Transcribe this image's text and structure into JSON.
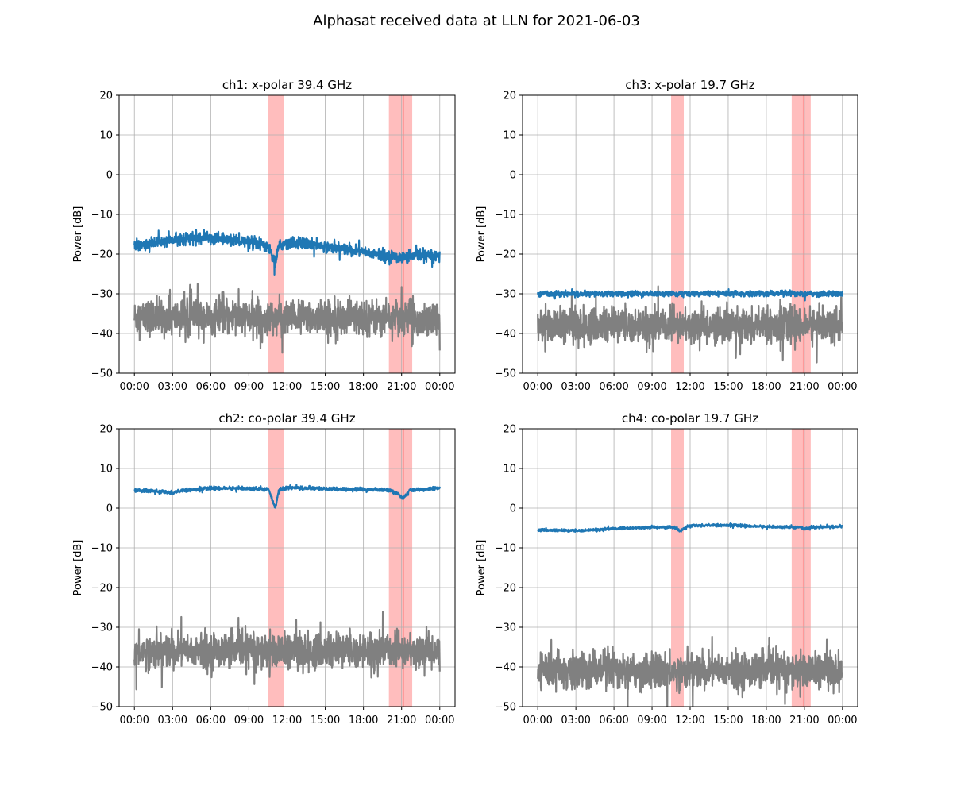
{
  "figure": {
    "title": "Alphasat received data at LLN for 2021-06-03"
  },
  "chart_data": [
    {
      "type": "line",
      "title": "ch1: x-polar 39.4 GHz",
      "xlabel": "",
      "ylabel": "Power [dB]",
      "xlim": [
        "2021-06-03 00:00",
        "2021-06-04 00:00"
      ],
      "ylim": [
        -50,
        20
      ],
      "x_ticks": [
        "00:00",
        "03:00",
        "06:00",
        "09:00",
        "12:00",
        "15:00",
        "18:00",
        "21:00",
        "00:00"
      ],
      "y_ticks": [
        -50,
        -40,
        -30,
        -20,
        -10,
        0,
        10,
        20
      ],
      "grid": true,
      "shaded_intervals": [
        [
          "10:30",
          "11:45"
        ],
        [
          "20:00",
          "21:50"
        ]
      ],
      "extra_vlines": [
        "21:10"
      ],
      "shade_color": "#ff9999",
      "series": [
        {
          "color": "#1f77b4",
          "noise_db": 1.3,
          "x": [
            "00:00",
            "02:00",
            "04:00",
            "06:00",
            "08:00",
            "09:30",
            "10:30",
            "10:55",
            "11:05",
            "11:20",
            "12:00",
            "14:00",
            "16:00",
            "18:00",
            "20:00",
            "21:00",
            "22:00",
            "24:00"
          ],
          "y": [
            -18,
            -17,
            -16,
            -16,
            -16.5,
            -17.5,
            -18,
            -21,
            -22,
            -18,
            -17,
            -17.5,
            -18.5,
            -19.5,
            -20.5,
            -21,
            -20.5,
            -20.5
          ]
        },
        {
          "color": "#808080",
          "noise_db": 4,
          "x": [
            "00:00",
            "24:00"
          ],
          "y": [
            -36,
            -36
          ]
        }
      ]
    },
    {
      "type": "line",
      "title": "ch3: x-polar 19.7 GHz",
      "xlabel": "",
      "ylabel": "Power [dB]",
      "xlim": [
        "2021-06-03 00:00",
        "2021-06-04 00:00"
      ],
      "ylim": [
        -50,
        20
      ],
      "x_ticks": [
        "00:00",
        "03:00",
        "06:00",
        "09:00",
        "12:00",
        "15:00",
        "18:00",
        "21:00",
        "00:00"
      ],
      "y_ticks": [
        -50,
        -40,
        -30,
        -20,
        -10,
        0,
        10,
        20
      ],
      "grid": true,
      "shaded_intervals": [
        [
          "10:30",
          "11:30"
        ],
        [
          "20:00",
          "21:30"
        ]
      ],
      "extra_vlines": [
        "20:55"
      ],
      "shade_color": "#ff9999",
      "series": [
        {
          "color": "#1f77b4",
          "noise_db": 0.6,
          "x": [
            "00:00",
            "24:00"
          ],
          "y": [
            -30,
            -30
          ]
        },
        {
          "color": "#808080",
          "noise_db": 4,
          "x": [
            "00:00",
            "24:00"
          ],
          "y": [
            -38,
            -38
          ]
        }
      ]
    },
    {
      "type": "line",
      "title": "ch2: co-polar 39.4 GHz",
      "xlabel": "",
      "ylabel": "Power [dB]",
      "xlim": [
        "2021-06-03 00:00",
        "2021-06-04 00:00"
      ],
      "ylim": [
        -50,
        20
      ],
      "x_ticks": [
        "00:00",
        "03:00",
        "06:00",
        "09:00",
        "12:00",
        "15:00",
        "18:00",
        "21:00",
        "00:00"
      ],
      "y_ticks": [
        -50,
        -40,
        -30,
        -20,
        -10,
        0,
        10,
        20
      ],
      "grid": true,
      "shaded_intervals": [
        [
          "10:30",
          "11:45"
        ],
        [
          "20:00",
          "21:50"
        ]
      ],
      "extra_vlines": [
        "21:10"
      ],
      "shade_color": "#ff9999",
      "series": [
        {
          "color": "#1f77b4",
          "noise_db": 0.4,
          "x": [
            "00:00",
            "02:00",
            "03:00",
            "04:00",
            "06:00",
            "08:00",
            "10:30",
            "10:55",
            "11:05",
            "11:20",
            "12:00",
            "14:00",
            "16:00",
            "18:00",
            "20:00",
            "20:45",
            "21:10",
            "21:40",
            "24:00"
          ],
          "y": [
            4.5,
            4.2,
            3.9,
            4.5,
            5,
            5,
            4.8,
            1.5,
            0,
            4.5,
            5.2,
            5,
            4.8,
            4.7,
            4.6,
            3.5,
            2.5,
            4.5,
            5
          ]
        },
        {
          "color": "#808080",
          "noise_db": 4,
          "x": [
            "00:00",
            "24:00"
          ],
          "y": [
            -36,
            -36
          ]
        }
      ]
    },
    {
      "type": "line",
      "title": "ch4: co-polar 19.7 GHz",
      "xlabel": "",
      "ylabel": "Power [dB]",
      "xlim": [
        "2021-06-03 00:00",
        "2021-06-04 00:00"
      ],
      "ylim": [
        -50,
        20
      ],
      "x_ticks": [
        "00:00",
        "03:00",
        "06:00",
        "09:00",
        "12:00",
        "15:00",
        "18:00",
        "21:00",
        "00:00"
      ],
      "y_ticks": [
        -50,
        -40,
        -30,
        -20,
        -10,
        0,
        10,
        20
      ],
      "grid": true,
      "shaded_intervals": [
        [
          "10:30",
          "11:30"
        ],
        [
          "20:00",
          "21:30"
        ]
      ],
      "extra_vlines": [
        "20:55"
      ],
      "shade_color": "#ff9999",
      "series": [
        {
          "color": "#1f77b4",
          "noise_db": 0.3,
          "x": [
            "00:00",
            "03:00",
            "06:00",
            "09:00",
            "10:45",
            "11:15",
            "11:40",
            "12:00",
            "15:00",
            "18:00",
            "20:30",
            "21:00",
            "21:30",
            "24:00"
          ],
          "y": [
            -5.5,
            -5.7,
            -5.2,
            -4.8,
            -4.8,
            -5.8,
            -4.8,
            -4.4,
            -4.3,
            -4.7,
            -4.8,
            -5.2,
            -4.8,
            -4.6
          ]
        },
        {
          "color": "#808080",
          "noise_db": 4,
          "x": [
            "00:00",
            "24:00"
          ],
          "y": [
            -41,
            -41
          ]
        }
      ]
    }
  ]
}
